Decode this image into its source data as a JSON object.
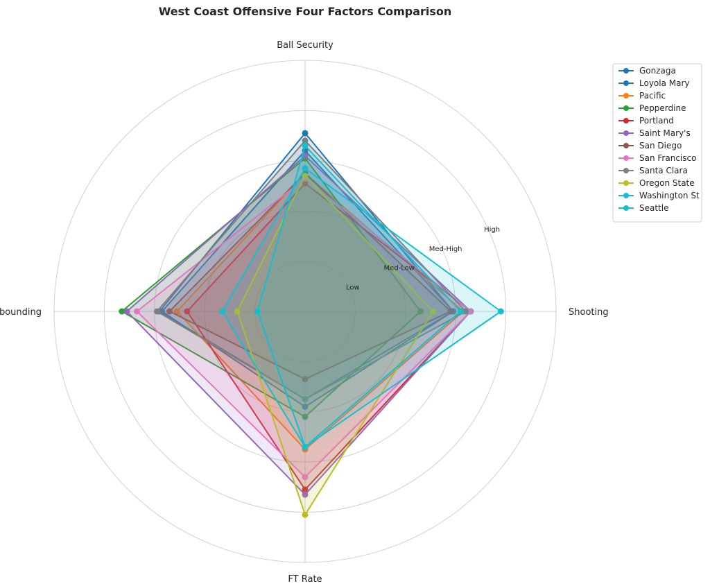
{
  "chart_data": {
    "type": "radar",
    "title": "West Coast Offensive Four Factors Comparison",
    "axes": [
      "Ball Security",
      "Shooting",
      "FT Rate",
      "Off Rebounding"
    ],
    "rings": [
      {
        "label": "Low",
        "r": 1
      },
      {
        "label": "Med-Low",
        "r": 2
      },
      {
        "label": "Med-High",
        "r": 3
      },
      {
        "label": "High",
        "r": 4
      },
      {
        "label": "",
        "r": 5
      }
    ],
    "rmax": 5,
    "grid": true,
    "legend_position": "top-right",
    "series": [
      {
        "name": "Gonzaga",
        "color": "#1f77b4",
        "values": [
          3.55,
          2.95,
          1.75,
          2.9
        ]
      },
      {
        "name": "Loyola Mary",
        "color": "#1f77b4",
        "values": [
          3.2,
          2.95,
          1.9,
          2.85
        ]
      },
      {
        "name": "Pacific",
        "color": "#ff7f0e",
        "values": [
          2.75,
          3.15,
          2.75,
          2.55
        ]
      },
      {
        "name": "Pepperdine",
        "color": "#2ca02c",
        "values": [
          3.05,
          2.3,
          2.1,
          3.65
        ]
      },
      {
        "name": "Portland",
        "color": "#d62728",
        "values": [
          2.55,
          3.3,
          3.55,
          2.35
        ]
      },
      {
        "name": "Saint Mary's",
        "color": "#9467bd",
        "values": [
          3.1,
          3.3,
          3.65,
          3.55
        ]
      },
      {
        "name": "San Diego",
        "color": "#8c564b",
        "values": [
          2.75,
          2.9,
          1.35,
          2.7
        ]
      },
      {
        "name": "San Francisco",
        "color": "#e377c2",
        "values": [
          2.65,
          3.3,
          3.3,
          3.35
        ]
      },
      {
        "name": "Santa Clara",
        "color": "#7f7f7f",
        "values": [
          3.4,
          3.2,
          1.75,
          2.95
        ]
      },
      {
        "name": "Oregon State",
        "color": "#bcbd22",
        "values": [
          2.7,
          2.55,
          4.05,
          1.35
        ]
      },
      {
        "name": "Washington St",
        "color": "#17becf",
        "values": [
          3.3,
          3.1,
          2.7,
          0.95
        ]
      },
      {
        "name": "Seattle",
        "color": "#17becf",
        "values": [
          2.85,
          3.9,
          2.7,
          1.65
        ]
      }
    ]
  }
}
